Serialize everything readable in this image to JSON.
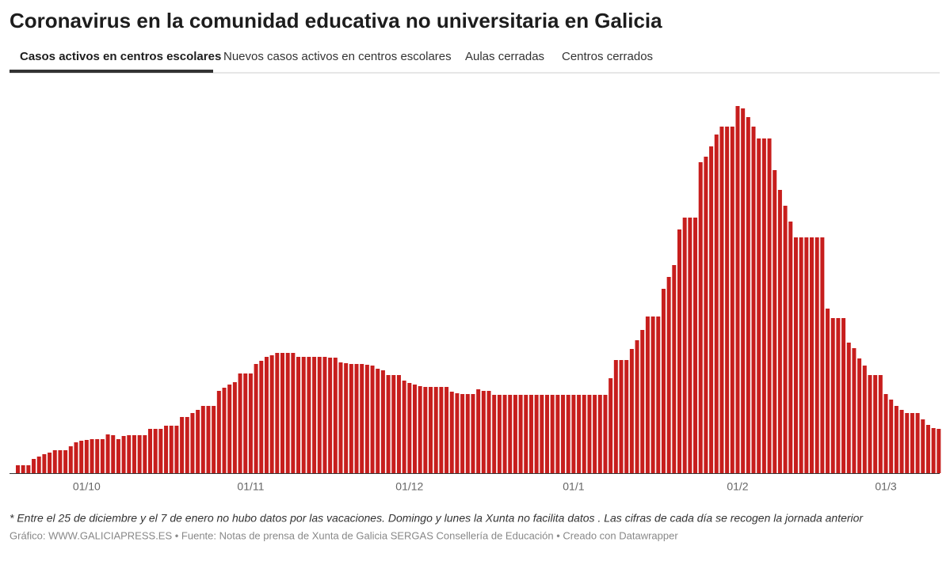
{
  "chart_data": {
    "type": "bar",
    "title": "Coronavirus en la comunidad educativa no universitaria en Galicia",
    "tabs": [
      "Casos activos en centros escolares",
      "Nuevos casos activos en centros escolares",
      "Aulas cerradas",
      "Centros cerrados"
    ],
    "active_tab": 0,
    "color": "#c71e1d",
    "categories": [
      null,
      null,
      null,
      null,
      null,
      null,
      null,
      null,
      null,
      null,
      null,
      null,
      null,
      "01/10",
      null,
      null,
      null,
      null,
      null,
      null,
      null,
      null,
      null,
      null,
      null,
      null,
      null,
      null,
      null,
      null,
      null,
      null,
      null,
      null,
      null,
      null,
      null,
      null,
      null,
      null,
      null,
      null,
      null,
      null,
      "01/11",
      null,
      null,
      null,
      null,
      null,
      null,
      null,
      null,
      null,
      null,
      null,
      null,
      null,
      null,
      null,
      null,
      null,
      null,
      null,
      null,
      null,
      null,
      null,
      null,
      null,
      null,
      null,
      null,
      null,
      "01/12",
      null,
      null,
      null,
      null,
      null,
      null,
      null,
      null,
      null,
      null,
      null,
      null,
      null,
      null,
      null,
      null,
      null,
      null,
      null,
      null,
      null,
      null,
      null,
      null,
      null,
      null,
      null,
      null,
      null,
      null,
      "01/1",
      null,
      null,
      null,
      null,
      null,
      null,
      null,
      null,
      null,
      null,
      null,
      null,
      null,
      null,
      null,
      null,
      null,
      null,
      null,
      null,
      null,
      null,
      null,
      null,
      null,
      null,
      null,
      null,
      null,
      null,
      "01/2",
      null,
      null,
      null,
      null,
      null,
      null,
      null,
      null,
      null,
      null,
      null,
      null,
      null,
      null,
      null,
      null,
      null,
      null,
      null,
      null,
      null,
      null,
      null,
      null,
      null,
      null,
      null,
      "01/3",
      null,
      null,
      null,
      null,
      null,
      null,
      null,
      null,
      null,
      null
    ],
    "values": [
      10,
      10,
      10,
      18,
      21,
      24,
      26,
      29,
      29,
      29,
      34,
      39,
      41,
      42,
      43,
      43,
      43,
      49,
      48,
      43,
      47,
      48,
      48,
      48,
      48,
      56,
      56,
      56,
      60,
      60,
      60,
      71,
      71,
      76,
      80,
      85,
      85,
      85,
      104,
      108,
      112,
      115,
      126,
      126,
      126,
      138,
      142,
      147,
      149,
      152,
      152,
      152,
      152,
      147,
      147,
      147,
      147,
      147,
      147,
      146,
      146,
      140,
      139,
      138,
      138,
      138,
      137,
      136,
      132,
      130,
      124,
      124,
      124,
      117,
      114,
      112,
      110,
      109,
      109,
      109,
      109,
      109,
      103,
      101,
      100,
      100,
      100,
      106,
      104,
      104,
      99,
      99,
      99,
      99,
      99,
      99,
      99,
      99,
      99,
      99,
      99,
      99,
      99,
      99,
      99,
      99,
      99,
      99,
      99,
      99,
      99,
      99,
      120,
      143,
      143,
      143,
      157,
      168,
      181,
      198,
      198,
      198,
      233,
      248,
      263,
      308,
      323,
      323,
      323,
      393,
      400,
      413,
      428,
      438,
      438,
      438,
      464,
      461,
      450,
      438,
      423,
      423,
      423,
      383,
      358,
      338,
      318,
      298,
      298,
      298,
      298,
      298,
      298,
      208,
      196,
      196,
      196,
      165,
      158,
      145,
      136,
      124,
      124,
      124,
      100,
      93,
      85,
      80,
      76,
      76,
      76,
      68,
      61,
      57,
      56
    ],
    "note": "* Entre el 25 de diciembre y el 7 de enero no hubo datos por las vacaciones. Domingo y lunes la Xunta no facilita datos . Las cifras de cada día se recogen la jornada anterior",
    "source": "Gráfico: WWW.GALICIAPRESS.ES • Fuente: Notas de prensa de Xunta de Galicia SERGAS Consellería de Educación • Creado con Datawrapper"
  }
}
